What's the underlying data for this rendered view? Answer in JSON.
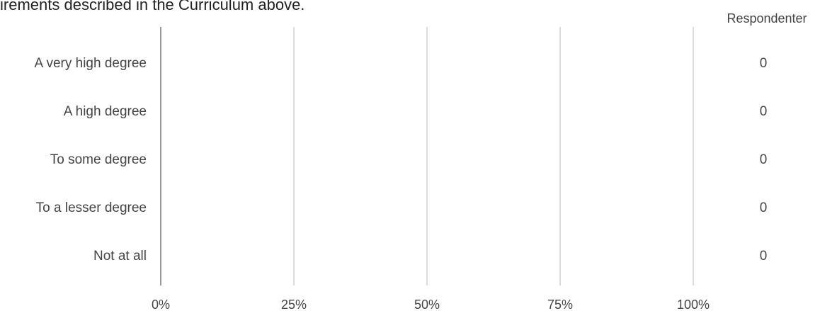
{
  "header": {
    "title_fragment": "irements described in the Curriculum above."
  },
  "chart_data": {
    "type": "bar",
    "orientation": "horizontal",
    "categories": [
      "A very high degree",
      "A high degree",
      "To some degree",
      "To a lesser degree",
      "Not at all"
    ],
    "values": [
      0,
      0,
      0,
      0,
      0
    ],
    "respondents": [
      0,
      0,
      0,
      0,
      0
    ],
    "respondents_header": "Respondenter",
    "x_ticks": [
      "0%",
      "25%",
      "50%",
      "75%",
      "100%"
    ],
    "xlim": [
      0,
      100
    ],
    "grid": true,
    "colors": {
      "grid": "#b8b8b8",
      "axis": "#999999",
      "text": "#444444",
      "bar": "#4a90c8"
    }
  }
}
